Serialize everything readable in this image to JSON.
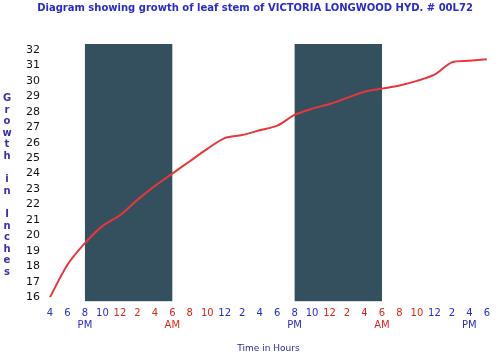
{
  "chart_data": {
    "type": "line",
    "title": "Diagram showing growth of leaf stem of VICTORIA LONGWOOD HYD. # 00L72",
    "x_label": "Time in Hours",
    "y_label": "Growth in Inches",
    "categories": [
      "4",
      "6",
      "8",
      "10",
      "12",
      "2",
      "4",
      "6",
      "8",
      "10",
      "12",
      "2",
      "4",
      "6",
      "8",
      "10",
      "12",
      "2",
      "4",
      "6",
      "8",
      "10",
      "12",
      "2",
      "4",
      "6"
    ],
    "sublabels": [
      null,
      null,
      "PM",
      null,
      null,
      null,
      null,
      "AM",
      null,
      null,
      null,
      null,
      null,
      null,
      "PM",
      null,
      null,
      null,
      null,
      "AM",
      null,
      null,
      null,
      null,
      "PM",
      null
    ],
    "periods": [
      {
        "label": "PM",
        "color": "#2a2ad2"
      },
      {
        "label": "AM",
        "color": "#e3241f"
      }
    ],
    "values": [
      16.0,
      18.1,
      19.5,
      20.6,
      21.3,
      22.3,
      23.2,
      24.0,
      24.8,
      25.6,
      26.3,
      26.5,
      26.8,
      27.1,
      27.8,
      28.2,
      28.5,
      28.9,
      29.3,
      29.5,
      29.7,
      30.0,
      30.4,
      31.2,
      31.3,
      31.4
    ],
    "color": "#e8363a",
    "shaded": [
      {
        "from": 2,
        "to": 7,
        "color": "#34505e"
      },
      {
        "from": 14,
        "to": 19,
        "color": "#34505e"
      }
    ],
    "ylim": [
      16,
      32
    ],
    "yticks": [
      16,
      17,
      18,
      19,
      20,
      21,
      22,
      23,
      24,
      25,
      26,
      27,
      28,
      29,
      30,
      31,
      32
    ],
    "grid": false
  }
}
